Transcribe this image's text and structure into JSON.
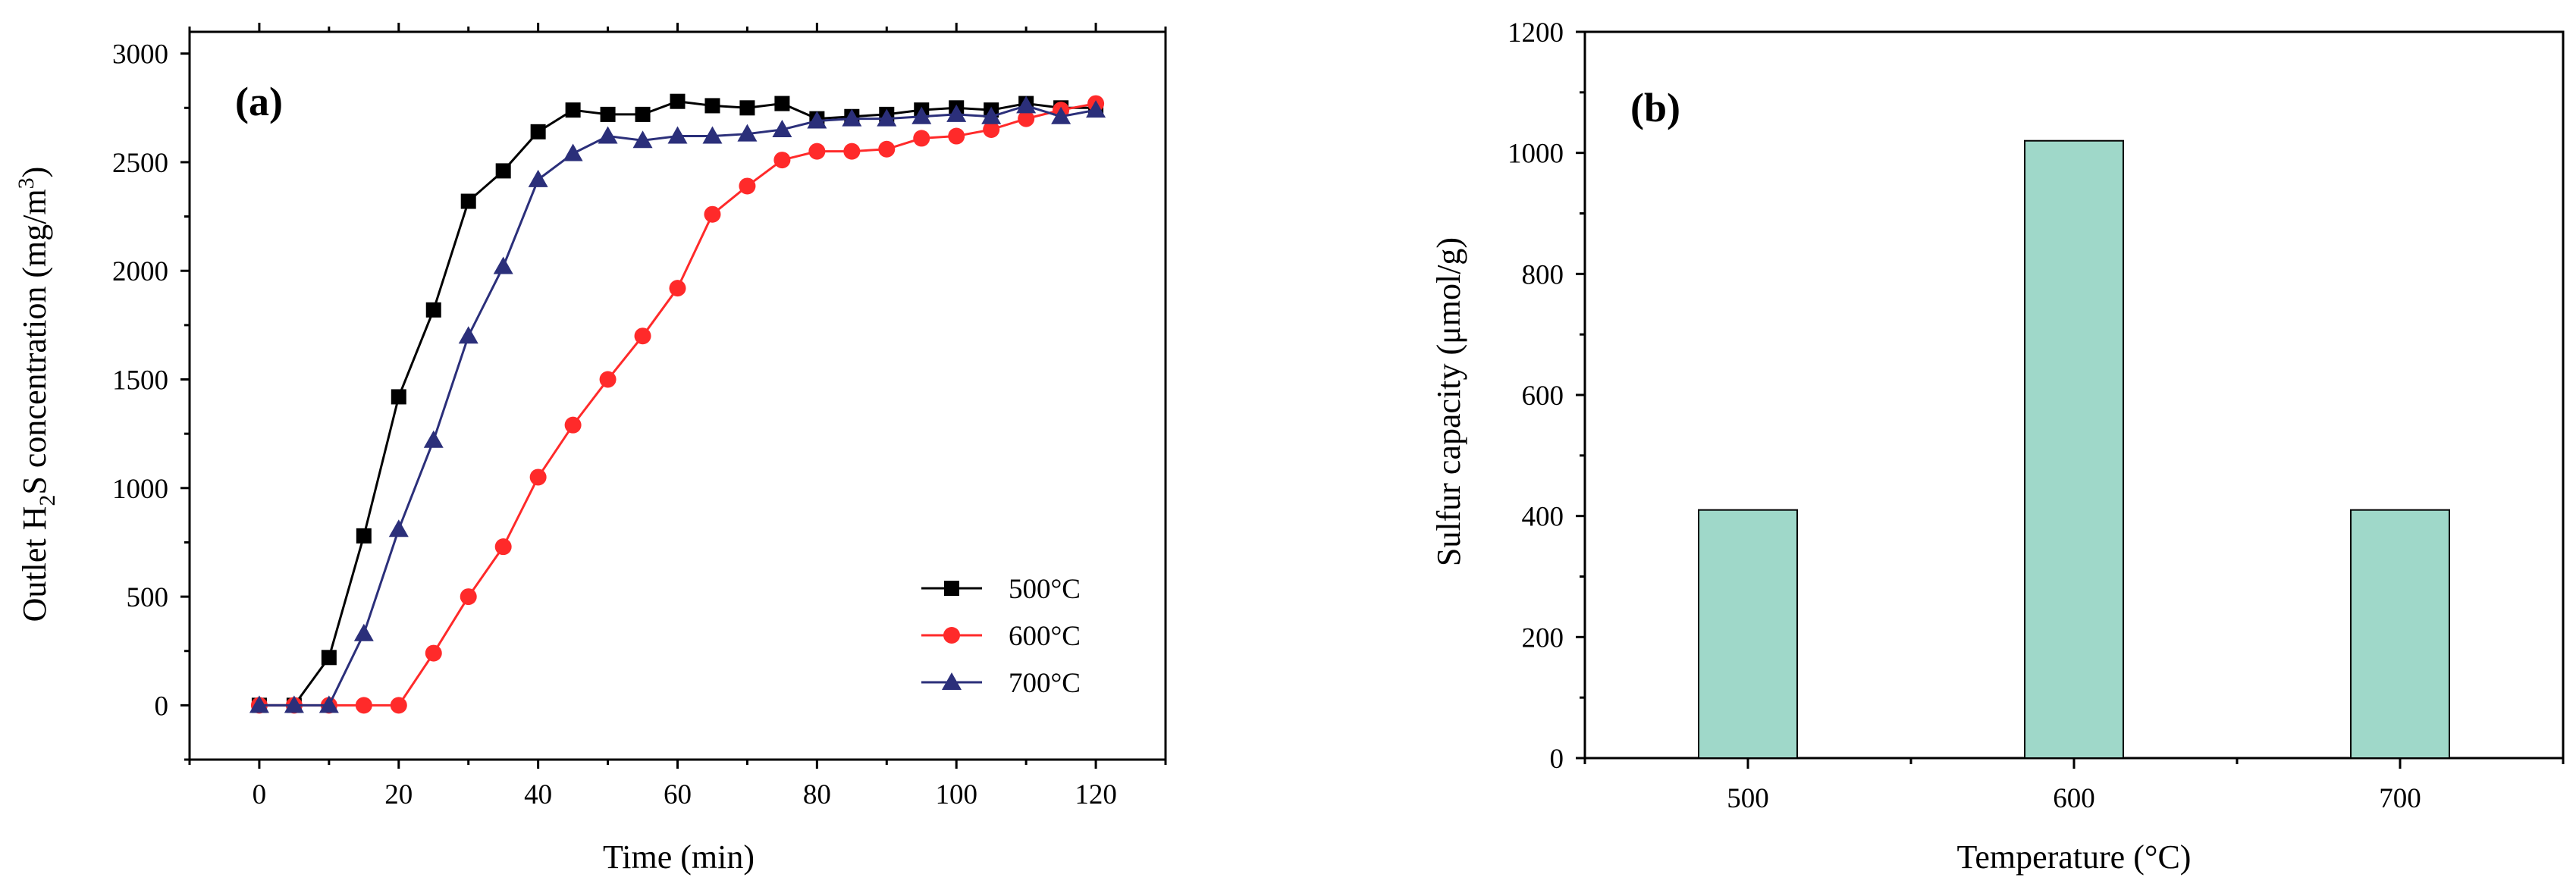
{
  "chart_data": [
    {
      "type": "line",
      "panel_label": "(a)",
      "xlabel": "Time (min)",
      "ylabel": {
        "prefix": "Outlet H",
        "sub": "2",
        "mid": "S concentration (mg/m",
        "sup": "3",
        "suffix": ")"
      },
      "xlim": [
        -10,
        130
      ],
      "ylim": [
        -250,
        3100
      ],
      "xticks": [
        0,
        20,
        40,
        60,
        80,
        100,
        120
      ],
      "yticks": [
        0,
        500,
        1000,
        1500,
        2000,
        2500,
        3000
      ],
      "x": [
        0,
        5,
        10,
        15,
        20,
        25,
        30,
        35,
        40,
        45,
        50,
        55,
        60,
        65,
        70,
        75,
        80,
        85,
        90,
        95,
        100,
        105,
        110,
        115,
        120
      ],
      "series": [
        {
          "name": "500°C",
          "color": "#000000",
          "marker": "square",
          "values": [
            0,
            0,
            220,
            780,
            1420,
            1820,
            2320,
            2460,
            2640,
            2740,
            2720,
            2720,
            2780,
            2760,
            2750,
            2770,
            2700,
            2710,
            2720,
            2740,
            2750,
            2740,
            2770,
            2750,
            2750
          ]
        },
        {
          "name": "600°C",
          "color": "#ff2a2a",
          "marker": "circle",
          "values": [
            0,
            0,
            0,
            0,
            0,
            240,
            500,
            730,
            1050,
            1290,
            1500,
            1700,
            1920,
            2260,
            2390,
            2510,
            2550,
            2550,
            2560,
            2610,
            2620,
            2650,
            2700,
            2740,
            2770
          ]
        },
        {
          "name": "700°C",
          "color": "#2b2f7a",
          "marker": "triangle",
          "values": [
            0,
            0,
            0,
            330,
            810,
            1220,
            1700,
            2020,
            2420,
            2540,
            2620,
            2600,
            2620,
            2620,
            2630,
            2650,
            2690,
            2700,
            2700,
            2710,
            2720,
            2710,
            2760,
            2710,
            2740
          ]
        }
      ],
      "legend_position": "bottom-right"
    },
    {
      "type": "bar",
      "panel_label": "(b)",
      "xlabel": "Temperature (°C)",
      "ylabel": "Sulfur capacity (μmol/g)",
      "categories": [
        "500",
        "600",
        "700"
      ],
      "values": [
        410,
        1020,
        410
      ],
      "ylim": [
        0,
        1200
      ],
      "yticks": [
        0,
        200,
        400,
        600,
        800,
        1000,
        1200
      ],
      "bar_color": "#9fd8c9"
    }
  ]
}
